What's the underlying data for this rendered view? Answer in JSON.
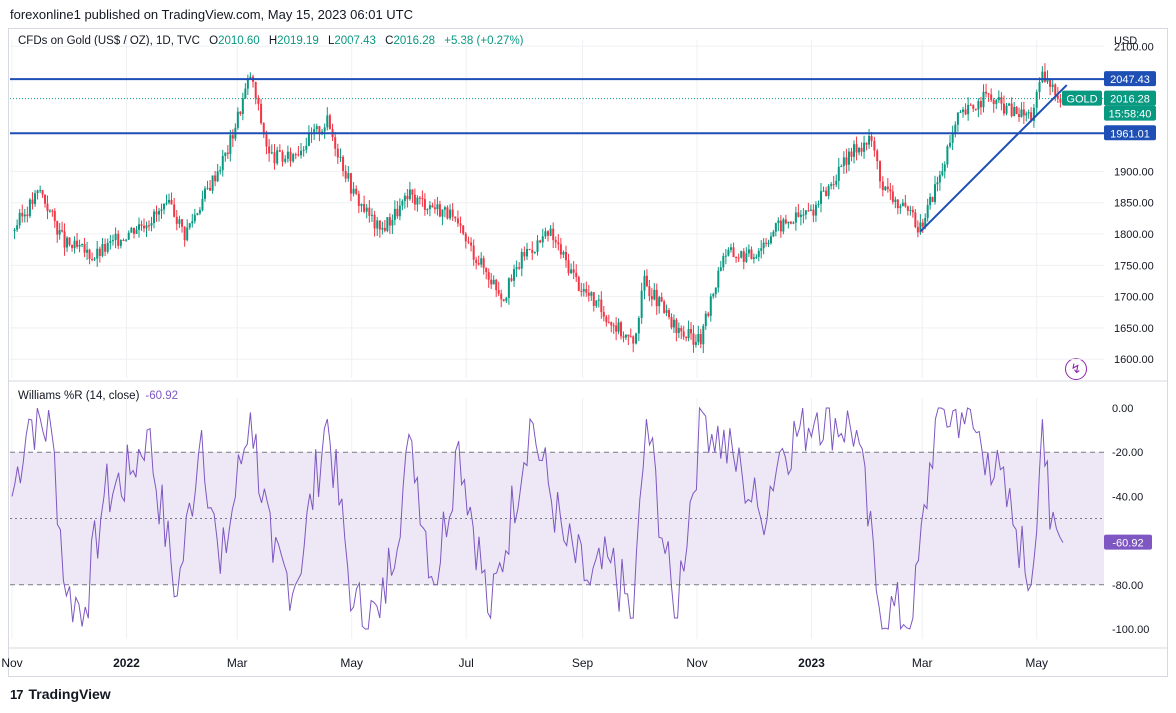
{
  "header": {
    "published_line": "forexonline1 published on TradingView.com, May 15, 2023 06:01 UTC"
  },
  "legend": {
    "symbol": "CFDs on Gold (US$ / OZ), 1D, TVC",
    "open_label": "O",
    "open": "2010.60",
    "high_label": "H",
    "high": "2019.19",
    "low_label": "L",
    "low": "2007.43",
    "close_label": "C",
    "close": "2016.28",
    "change": "+5.38 (+0.27%)"
  },
  "price_axis": {
    "currency": "USD",
    "ticks": [
      "2100.00",
      "1900.00",
      "1850.00",
      "1800.00",
      "1750.00",
      "1700.00",
      "1650.00",
      "1600.00"
    ],
    "resistance_label": "2047.43",
    "support_label": "1961.01",
    "symbol_tag": "GOLD",
    "last_price_label": "2016.28",
    "countdown_label": "15:58:40"
  },
  "oscillator": {
    "title": "Williams %R (14, close)",
    "value": "-60.92",
    "ticks": [
      "0.00",
      "-20.00",
      "-40.00",
      "-80.00",
      "-100.00"
    ],
    "value_label": "-60.92"
  },
  "time_axis": {
    "labels": [
      "Nov",
      "2022",
      "Mar",
      "May",
      "Jul",
      "Sep",
      "Nov",
      "2023",
      "Mar",
      "May"
    ]
  },
  "footer": {
    "brand": "TradingView",
    "logo": "17"
  },
  "colors": {
    "up": "#089981",
    "down": "#f23645",
    "level_line": "#1e4fb5",
    "wr_line": "#7e57c2",
    "wr_band": "#ede7f6",
    "grid": "#eef0f3"
  },
  "chart_data": [
    {
      "type": "candlestick",
      "title": "CFDs on Gold (US$ / OZ), 1D, TVC",
      "x_range": [
        "2021-11-01",
        "2023-05-15"
      ],
      "ylim": [
        1570,
        2110
      ],
      "horizontal_levels": [
        2047.43,
        1961.01
      ],
      "last_price": 2016.28,
      "trendline": {
        "from": [
          "2023-02-28",
          1804
        ],
        "to": [
          "2023-05-17",
          2038
        ]
      },
      "close_points": [
        {
          "date": "2021-11-01",
          "value": 1805
        },
        {
          "date": "2021-11-16",
          "value": 1870
        },
        {
          "date": "2021-11-29",
          "value": 1785
        },
        {
          "date": "2021-12-15",
          "value": 1765
        },
        {
          "date": "2022-01-05",
          "value": 1810
        },
        {
          "date": "2022-01-25",
          "value": 1845
        },
        {
          "date": "2022-02-01",
          "value": 1800
        },
        {
          "date": "2022-02-24",
          "value": 1935
        },
        {
          "date": "2022-03-08",
          "value": 2055
        },
        {
          "date": "2022-03-18",
          "value": 1925
        },
        {
          "date": "2022-03-28",
          "value": 1920
        },
        {
          "date": "2022-04-18",
          "value": 1980
        },
        {
          "date": "2022-05-02",
          "value": 1865
        },
        {
          "date": "2022-05-16",
          "value": 1805
        },
        {
          "date": "2022-06-01",
          "value": 1860
        },
        {
          "date": "2022-06-21",
          "value": 1835
        },
        {
          "date": "2022-07-05",
          "value": 1770
        },
        {
          "date": "2022-07-21",
          "value": 1700
        },
        {
          "date": "2022-08-01",
          "value": 1770
        },
        {
          "date": "2022-08-15",
          "value": 1800
        },
        {
          "date": "2022-08-30",
          "value": 1720
        },
        {
          "date": "2022-09-15",
          "value": 1665
        },
        {
          "date": "2022-09-28",
          "value": 1625
        },
        {
          "date": "2022-10-04",
          "value": 1725
        },
        {
          "date": "2022-10-21",
          "value": 1645
        },
        {
          "date": "2022-11-03",
          "value": 1630
        },
        {
          "date": "2022-11-15",
          "value": 1770
        },
        {
          "date": "2022-11-30",
          "value": 1765
        },
        {
          "date": "2022-12-13",
          "value": 1810
        },
        {
          "date": "2023-01-02",
          "value": 1840
        },
        {
          "date": "2023-01-25",
          "value": 1940
        },
        {
          "date": "2023-02-02",
          "value": 1950
        },
        {
          "date": "2023-02-08",
          "value": 1875
        },
        {
          "date": "2023-02-28",
          "value": 1810
        },
        {
          "date": "2023-03-13",
          "value": 1915
        },
        {
          "date": "2023-03-20",
          "value": 1985
        },
        {
          "date": "2023-04-04",
          "value": 2020
        },
        {
          "date": "2023-04-19",
          "value": 1995
        },
        {
          "date": "2023-04-28",
          "value": 1990
        },
        {
          "date": "2023-05-04",
          "value": 2050
        },
        {
          "date": "2023-05-15",
          "value": 2016.28
        }
      ]
    },
    {
      "type": "line",
      "title": "Williams %R (14, close)",
      "ylim": [
        -100,
        0
      ],
      "bands": [
        -20,
        -50,
        -80
      ],
      "series": [
        {
          "name": "Williams %R (14, close)",
          "points": [
            {
              "date": "2021-11-01",
              "value": -40
            },
            {
              "date": "2021-11-10",
              "value": -5
            },
            {
              "date": "2021-11-22",
              "value": -10
            },
            {
              "date": "2021-11-30",
              "value": -85
            },
            {
              "date": "2021-12-10",
              "value": -90
            },
            {
              "date": "2021-12-20",
              "value": -40
            },
            {
              "date": "2022-01-03",
              "value": -30
            },
            {
              "date": "2022-01-12",
              "value": -10
            },
            {
              "date": "2022-01-28",
              "value": -85
            },
            {
              "date": "2022-02-10",
              "value": -10
            },
            {
              "date": "2022-02-20",
              "value": -75
            },
            {
              "date": "2022-03-08",
              "value": -2
            },
            {
              "date": "2022-03-20",
              "value": -70
            },
            {
              "date": "2022-04-01",
              "value": -80
            },
            {
              "date": "2022-04-18",
              "value": -5
            },
            {
              "date": "2022-05-02",
              "value": -90
            },
            {
              "date": "2022-05-16",
              "value": -95
            },
            {
              "date": "2022-06-02",
              "value": -15
            },
            {
              "date": "2022-06-14",
              "value": -80
            },
            {
              "date": "2022-06-27",
              "value": -15
            },
            {
              "date": "2022-07-14",
              "value": -95
            },
            {
              "date": "2022-08-04",
              "value": -5
            },
            {
              "date": "2022-08-22",
              "value": -60
            },
            {
              "date": "2022-09-05",
              "value": -80
            },
            {
              "date": "2022-09-16",
              "value": -70
            },
            {
              "date": "2022-09-28",
              "value": -95
            },
            {
              "date": "2022-10-05",
              "value": -5
            },
            {
              "date": "2022-10-20",
              "value": -95
            },
            {
              "date": "2022-11-04",
              "value": -2
            },
            {
              "date": "2022-11-25",
              "value": -30
            },
            {
              "date": "2022-12-05",
              "value": -50
            },
            {
              "date": "2022-12-15",
              "value": -20
            },
            {
              "date": "2023-01-04",
              "value": -2
            },
            {
              "date": "2023-01-25",
              "value": -10
            },
            {
              "date": "2023-02-06",
              "value": -90
            },
            {
              "date": "2023-02-24",
              "value": -95
            },
            {
              "date": "2023-03-08",
              "value": -5
            },
            {
              "date": "2023-03-22",
              "value": -2
            },
            {
              "date": "2023-04-05",
              "value": -20
            },
            {
              "date": "2023-04-20",
              "value": -55
            },
            {
              "date": "2023-04-28",
              "value": -80
            },
            {
              "date": "2023-05-04",
              "value": -5
            },
            {
              "date": "2023-05-08",
              "value": -55
            },
            {
              "date": "2023-05-15",
              "value": -60.92
            }
          ]
        }
      ]
    }
  ]
}
